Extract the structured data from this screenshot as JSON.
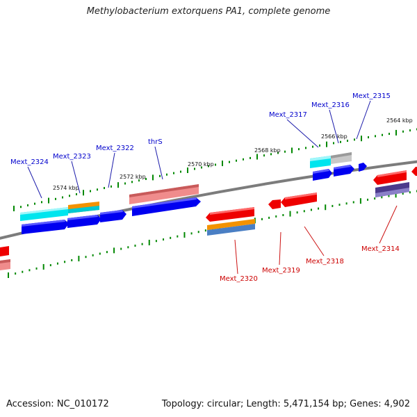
{
  "header": {
    "title": "Methylobacterium extorquens PA1, complete genome"
  },
  "footer": {
    "accession": "Accession: NC_010172",
    "summary": "Topology: circular; Length: 5,471,154 bp; Genes: 4,902"
  },
  "colors": {
    "upper_label": "#0000cc",
    "lower_label": "#cc0000",
    "tick": "#008800",
    "backbone": "#808080"
  },
  "ruler": [
    {
      "label": "2574 kbp"
    },
    {
      "label": "2572 kbp"
    },
    {
      "label": "2570 kbp"
    },
    {
      "label": "2568 kbp"
    },
    {
      "label": "2566 kbp"
    },
    {
      "label": "2564 kbp"
    }
  ],
  "genes_upper": [
    {
      "label": "Mext_2324"
    },
    {
      "label": "Mext_2323"
    },
    {
      "label": "Mext_2322"
    },
    {
      "label": "thrS"
    },
    {
      "label": "Mext_2317"
    },
    {
      "label": "Mext_2316"
    },
    {
      "label": "Mext_2315"
    }
  ],
  "genes_lower": [
    {
      "label": "Mext_2320"
    },
    {
      "label": "Mext_2319"
    },
    {
      "label": "Mext_2318"
    },
    {
      "label": "Mext_2314"
    }
  ]
}
